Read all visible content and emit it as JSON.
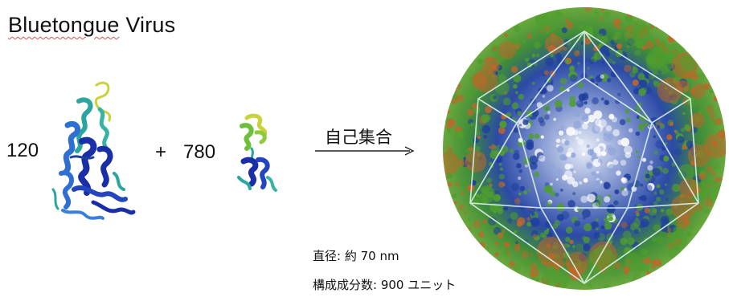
{
  "title": {
    "word1": "Bluetongue",
    "word2": " Virus"
  },
  "left_count": "120",
  "plus_sign": "+",
  "right_count": "780",
  "arrow_label": "自己集合",
  "info": {
    "diameter": "直径: 約 70 nm",
    "units": "構成成分数: 900 ユニット"
  },
  "colors": {
    "protein_dark": "#1a2ea8",
    "protein_mid": "#2f6fd1",
    "protein_teal": "#2aa5a0",
    "protein_green": "#6fbf3a",
    "protein_yellow": "#c8d23a",
    "capsid_green": "#4f9e2e",
    "capsid_orange": "#c0662a",
    "capsid_blue": "#1f3f9e",
    "cage_line": "#dff3ee"
  },
  "icons": [
    "protein-vp7-trimer-icon",
    "protein-vp3-icon",
    "self-assembly-arrow-icon",
    "virus-capsid-icon"
  ]
}
